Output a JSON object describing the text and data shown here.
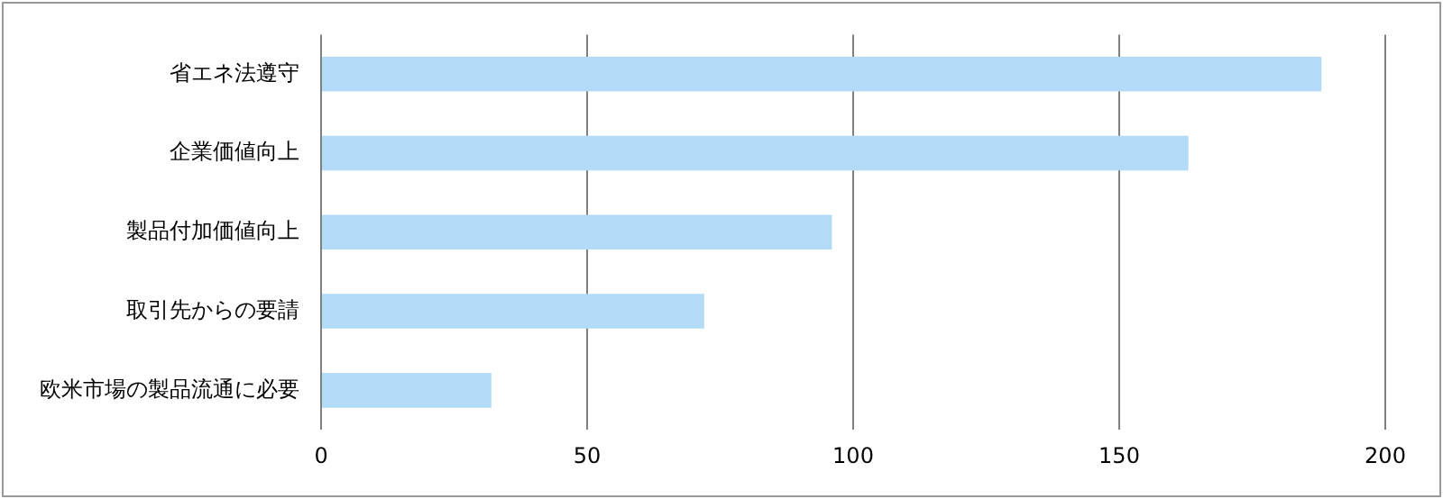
{
  "chart_data": {
    "type": "bar",
    "orientation": "horizontal",
    "categories": [
      "省エネ法遵守",
      "企業価値向上",
      "製品付加価値向上",
      "取引先からの要請",
      "欧米市場の製品流通に必要"
    ],
    "values": [
      188,
      163,
      96,
      72,
      32
    ],
    "color": "#b3dbf7",
    "xlim": [
      0,
      200
    ],
    "xticks": [
      0,
      50,
      100,
      150,
      200
    ],
    "grid": "x"
  }
}
